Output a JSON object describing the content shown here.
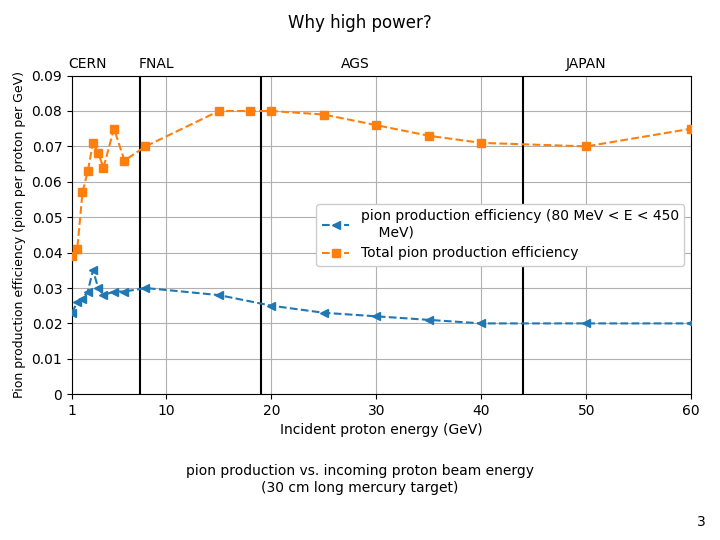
{
  "chart_data": {
    "type": "line",
    "title": "Why high power?",
    "subtitle": "pion production vs. incoming proton beam energy\n(30 cm long mercury target)",
    "slide_number": "3",
    "x_label": "Incident proton energy (GeV)",
    "y_label": "Pion production efficiency (pion per proton per GeV)",
    "series": [
      {
        "name": "pion production efficiency (80 MeV < E < 450\n    MeV)",
        "marker": "triangle_left",
        "line_style": "dashed",
        "x": [
          1.0,
          1.5,
          2.0,
          2.5,
          3.0,
          3.5,
          4.0,
          5.0,
          6.0,
          8.0,
          15.0,
          20.0,
          25.0,
          30.0,
          35.0,
          40.0,
          50.0,
          60.0
        ],
        "values": [
          0.023,
          0.026,
          0.027,
          0.029,
          0.035,
          0.03,
          0.028,
          0.029,
          0.029,
          0.03,
          0.028,
          0.025,
          0.023,
          0.022,
          0.021,
          0.02,
          0.02,
          0.02
        ]
      },
      {
        "name": "Total pion production efficiency",
        "marker": "square",
        "line_style": "dashed",
        "x": [
          1.0,
          1.5,
          2.0,
          2.5,
          3.0,
          3.5,
          4.0,
          5.0,
          6.0,
          8.0,
          15.0,
          18.0,
          20.0,
          25.0,
          30.0,
          35.0,
          40.0,
          50.0,
          60.0
        ],
        "values": [
          0.039,
          0.041,
          0.057,
          0.063,
          0.071,
          0.068,
          0.064,
          0.075,
          0.066,
          0.07,
          0.08,
          0.08,
          0.08,
          0.079,
          0.076,
          0.073,
          0.071,
          0.07,
          0.075
        ]
      }
    ],
    "annotations": [
      {
        "text": "CERN",
        "x": 2.5
      },
      {
        "text": "FNAL",
        "x": 9.0
      },
      {
        "text": "AGS",
        "x": 28.0
      },
      {
        "text": "JAPAN",
        "x": 50.0
      }
    ],
    "vlines": [
      7.5,
      19.0,
      44.0
    ],
    "xlim": [
      1,
      60
    ],
    "ylim": [
      0,
      0.09
    ],
    "xticks": [
      1,
      10,
      20,
      30,
      40,
      50,
      60
    ],
    "yticks": [
      0,
      0.01,
      0.02,
      0.03,
      0.04,
      0.05,
      0.06,
      0.07,
      0.08,
      0.09
    ],
    "grid": true,
    "legend": "center right"
  }
}
